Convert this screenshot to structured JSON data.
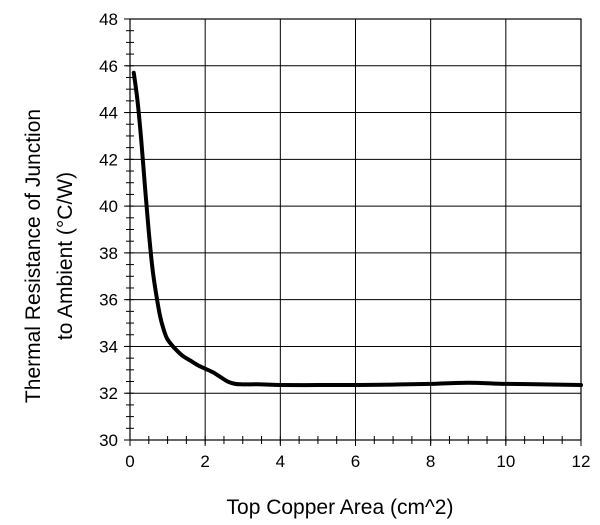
{
  "chart_data": {
    "type": "line",
    "title": "",
    "xlabel": "Top Copper Area (cm^2)",
    "ylabel_lines": [
      "Thermal Resistance of Junction",
      "to Ambient (°C/W)"
    ],
    "xlim": [
      0,
      12
    ],
    "ylim": [
      30,
      48
    ],
    "xticks": [
      0,
      2,
      4,
      6,
      8,
      10,
      12
    ],
    "yticks": [
      30,
      32,
      34,
      36,
      38,
      40,
      42,
      44,
      46,
      48
    ],
    "x_minor_step": 0.5,
    "y_minor_step": 0.5,
    "grid": true,
    "legend": "none",
    "line_color": "#000000",
    "series": [
      {
        "x": [
          0.1,
          0.2,
          0.3,
          0.4,
          0.5,
          0.6,
          0.7,
          0.8,
          0.9,
          1.0,
          1.2,
          1.4,
          1.6,
          1.8,
          2.0,
          2.2,
          2.4,
          2.6,
          2.8,
          3.0,
          3.5,
          4.0,
          5.0,
          6.0,
          7.0,
          8.0,
          9.0,
          10.0,
          11.0,
          12.0
        ],
        "y": [
          45.7,
          44.5,
          42.8,
          40.8,
          38.9,
          37.3,
          36.2,
          35.3,
          34.7,
          34.3,
          33.9,
          33.6,
          33.4,
          33.2,
          33.05,
          32.9,
          32.7,
          32.5,
          32.4,
          32.38,
          32.38,
          32.35,
          32.35,
          32.35,
          32.37,
          32.4,
          32.45,
          32.4,
          32.38,
          32.35
        ]
      }
    ]
  }
}
